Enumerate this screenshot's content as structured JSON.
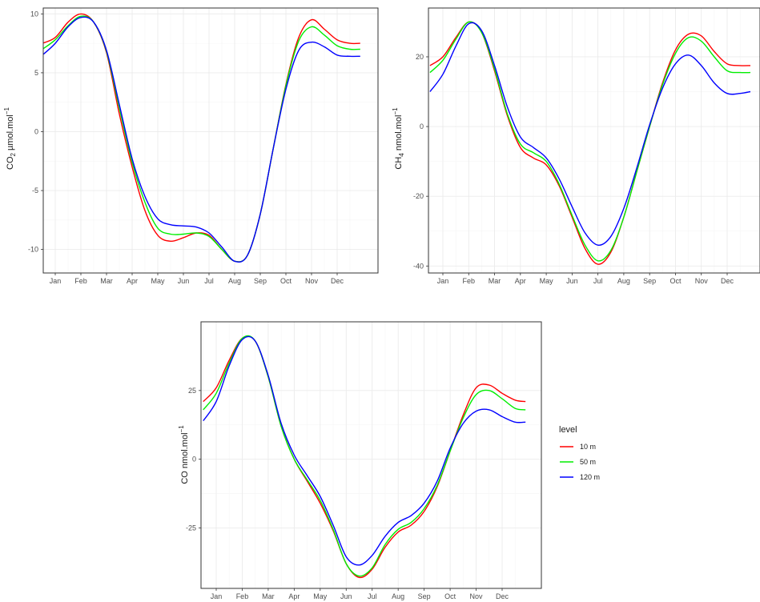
{
  "chart_data": [
    {
      "type": "line",
      "ylabel_main": "CO",
      "ylabel_sub": "2",
      "ylabel_rest": " µmol.mol",
      "ylabel_sup": "−1",
      "ylim": [
        -12,
        10.5
      ],
      "yticks": [
        -10,
        -5,
        0,
        5,
        10
      ],
      "ytick_labels": [
        "-10",
        "-5",
        "0",
        "5",
        "10"
      ],
      "x": [
        0.5,
        1,
        1.5,
        2,
        2.5,
        3,
        3.5,
        4,
        4.5,
        5,
        5.5,
        6,
        6.5,
        7,
        7.5,
        8,
        8.5,
        9,
        9.5,
        10,
        10.5,
        11,
        11.5,
        12,
        12.5,
        12.9
      ],
      "series": [
        {
          "name": "10 m",
          "values": [
            7.5,
            8.0,
            9.3,
            10.0,
            9.3,
            6.7,
            1.5,
            -3.0,
            -6.7,
            -8.8,
            -9.3,
            -9.0,
            -8.6,
            -8.8,
            -10.0,
            -11.0,
            -10.5,
            -7.0,
            -1.5,
            4.0,
            8.0,
            9.5,
            8.7,
            7.8,
            7.5,
            7.5
          ]
        },
        {
          "name": "50 m",
          "values": [
            7.0,
            7.8,
            9.0,
            9.8,
            9.3,
            6.8,
            2.0,
            -2.6,
            -6.0,
            -8.2,
            -8.7,
            -8.7,
            -8.6,
            -8.9,
            -10.0,
            -11.0,
            -10.5,
            -7.0,
            -1.5,
            3.9,
            7.7,
            8.9,
            8.2,
            7.3,
            7.0,
            7.0
          ]
        },
        {
          "name": "120 m",
          "values": [
            6.5,
            7.5,
            8.9,
            9.7,
            9.3,
            6.9,
            2.3,
            -2.3,
            -5.5,
            -7.4,
            -7.9,
            -8.0,
            -8.1,
            -8.6,
            -9.8,
            -11.0,
            -10.5,
            -7.0,
            -1.5,
            3.6,
            6.9,
            7.6,
            7.2,
            6.5,
            6.4,
            6.4
          ]
        }
      ]
    },
    {
      "type": "line",
      "ylabel_main": "CH",
      "ylabel_sub": "4",
      "ylabel_rest": " nmol.mol",
      "ylabel_sup": "−1",
      "ylim": [
        -42,
        34
      ],
      "yticks": [
        -40,
        -20,
        0,
        20
      ],
      "ytick_labels": [
        "-40",
        "-20",
        "0",
        "20"
      ],
      "x": [
        0.5,
        1,
        1.5,
        2,
        2.5,
        3,
        3.5,
        4,
        4.5,
        5,
        5.5,
        6,
        6.5,
        7,
        7.5,
        8,
        8.5,
        9,
        9.5,
        10,
        10.5,
        11,
        11.5,
        12,
        12.5,
        12.9
      ],
      "series": [
        {
          "name": "10 m",
          "values": [
            17.5,
            20.0,
            25.5,
            30.0,
            27.0,
            16.0,
            3.0,
            -6.0,
            -9.0,
            -11.0,
            -17.0,
            -26.0,
            -35.0,
            -39.5,
            -36.0,
            -26.0,
            -13.0,
            0.0,
            12.5,
            22.0,
            26.5,
            26.0,
            21.5,
            18.0,
            17.5,
            17.5
          ]
        },
        {
          "name": "50 m",
          "values": [
            15.5,
            19.0,
            25.0,
            30.0,
            27.0,
            16.5,
            3.5,
            -5.0,
            -7.5,
            -10.0,
            -16.5,
            -25.5,
            -34.0,
            -38.5,
            -35.5,
            -26.0,
            -13.0,
            0.0,
            12.0,
            21.0,
            25.5,
            24.5,
            20.0,
            16.0,
            15.5,
            15.5
          ]
        },
        {
          "name": "120 m",
          "values": [
            10.0,
            15.0,
            23.0,
            29.5,
            27.5,
            17.5,
            5.5,
            -3.0,
            -6.0,
            -9.0,
            -15.0,
            -23.0,
            -30.5,
            -34.0,
            -31.5,
            -23.5,
            -12.0,
            0.5,
            11.0,
            18.0,
            20.5,
            17.5,
            12.5,
            9.5,
            9.5,
            10.0
          ]
        }
      ]
    },
    {
      "type": "line",
      "ylabel_main": "CO nmol.mol",
      "ylabel_sub": "",
      "ylabel_rest": "",
      "ylabel_sup": "−1",
      "ylim": [
        -47,
        50
      ],
      "yticks": [
        -25,
        0,
        25
      ],
      "ytick_labels": [
        "-25",
        "0",
        "25"
      ],
      "x": [
        0.5,
        1,
        1.5,
        2,
        2.5,
        3,
        3.5,
        4,
        4.5,
        5,
        5.5,
        6,
        6.5,
        7,
        7.5,
        8,
        8.5,
        9,
        9.5,
        10,
        10.5,
        11,
        11.5,
        12,
        12.5,
        12.9
      ],
      "series": [
        {
          "name": "10 m",
          "values": [
            21.0,
            26.0,
            36.0,
            44.0,
            43.0,
            30.0,
            12.0,
            0.0,
            -8.0,
            -16.0,
            -26.0,
            -38.0,
            -43.0,
            -40.0,
            -32.0,
            -26.5,
            -24.0,
            -19.0,
            -10.0,
            3.0,
            16.0,
            26.0,
            27.0,
            24.0,
            21.5,
            21.0
          ]
        },
        {
          "name": "50 m",
          "values": [
            18.0,
            24.0,
            35.0,
            44.0,
            43.0,
            30.0,
            12.0,
            0.0,
            -7.5,
            -15.0,
            -25.5,
            -38.0,
            -42.5,
            -39.5,
            -31.0,
            -25.5,
            -23.0,
            -18.0,
            -9.5,
            3.0,
            15.0,
            23.5,
            25.0,
            22.0,
            18.5,
            18.0
          ]
        },
        {
          "name": "120 m",
          "values": [
            14.0,
            21.0,
            34.0,
            43.5,
            43.0,
            30.5,
            13.0,
            1.5,
            -6.0,
            -13.5,
            -24.0,
            -35.5,
            -38.5,
            -35.0,
            -28.0,
            -23.0,
            -20.5,
            -16.0,
            -8.0,
            4.0,
            13.0,
            17.5,
            18.0,
            15.5,
            13.5,
            13.5
          ]
        }
      ]
    }
  ],
  "months": [
    "Jan",
    "Feb",
    "Mar",
    "Apr",
    "May",
    "Jun",
    "Jul",
    "Aug",
    "Sep",
    "Oct",
    "Nov",
    "Dec"
  ],
  "legend": {
    "title": "level",
    "items": [
      {
        "label": "10 m",
        "color": "#ff0000"
      },
      {
        "label": "50 m",
        "color": "#00ee00"
      },
      {
        "label": "120 m",
        "color": "#0000ff"
      }
    ]
  },
  "colors": {
    "series": [
      "#ff0000",
      "#00ee00",
      "#0000ff"
    ],
    "grid_major": "#ebebeb",
    "grid_minor": "#f5f5f5",
    "panel_border": "#333333"
  }
}
